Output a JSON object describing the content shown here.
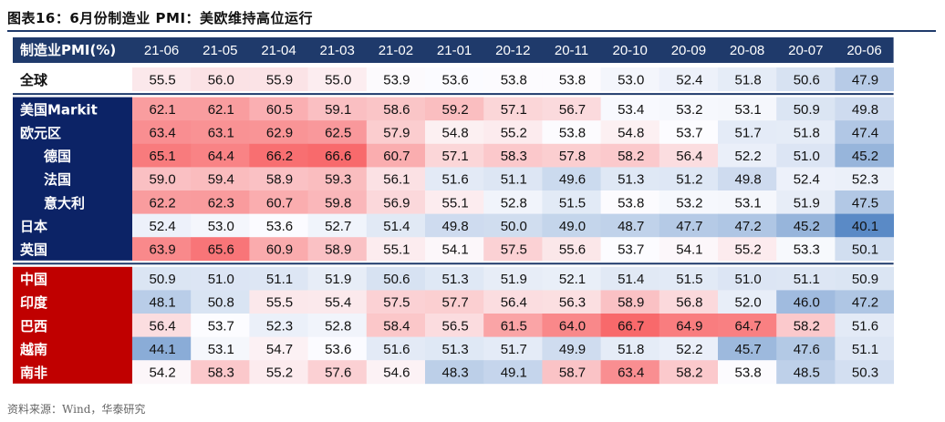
{
  "figure_title": "图表16：6月份制造业 PMI：美欧维持高位运行",
  "source_note": "资料来源：Wind，华泰研究",
  "colors": {
    "header_bg": "#1f3a6b",
    "developed_bg": "#0c2366",
    "emerging_bg": "#c00000",
    "high": "#f8696b",
    "mid": "#fcfcff",
    "low": "#5a8ac6"
  },
  "chart_data": {
    "type": "heatmap",
    "title": "6月份制造业 PMI：美欧维持高位运行",
    "corner_label": "制造业PMI(%)",
    "columns": [
      "21-06",
      "21-05",
      "21-04",
      "21-03",
      "21-02",
      "21-01",
      "20-12",
      "20-11",
      "20-10",
      "20-09",
      "20-08",
      "20-07",
      "20-06"
    ],
    "groups": [
      {
        "name": "global",
        "rows": [
          {
            "label": "全球",
            "indent": false,
            "values": [
              55.5,
              56.0,
              55.9,
              55.0,
              53.9,
              53.6,
              53.8,
              53.8,
              53.0,
              52.4,
              51.8,
              50.6,
              47.9
            ]
          }
        ]
      },
      {
        "name": "developed",
        "rows": [
          {
            "label": "美国Markit",
            "indent": false,
            "values": [
              62.1,
              62.1,
              60.5,
              59.1,
              58.6,
              59.2,
              57.1,
              56.7,
              53.4,
              53.2,
              53.1,
              50.9,
              49.8
            ]
          },
          {
            "label": "欧元区",
            "indent": false,
            "values": [
              63.4,
              63.1,
              62.9,
              62.5,
              57.9,
              54.8,
              55.2,
              53.8,
              54.8,
              53.7,
              51.7,
              51.8,
              47.4
            ]
          },
          {
            "label": "德国",
            "indent": true,
            "values": [
              65.1,
              64.4,
              66.2,
              66.6,
              60.7,
              57.1,
              58.3,
              57.8,
              58.2,
              56.4,
              52.2,
              51.0,
              45.2
            ]
          },
          {
            "label": "法国",
            "indent": true,
            "values": [
              59.0,
              59.4,
              58.9,
              59.3,
              56.1,
              51.6,
              51.1,
              49.6,
              51.3,
              51.2,
              49.8,
              52.4,
              52.3
            ]
          },
          {
            "label": "意大利",
            "indent": true,
            "values": [
              62.2,
              62.3,
              60.7,
              59.8,
              56.9,
              55.1,
              52.8,
              51.5,
              53.8,
              53.2,
              53.1,
              51.9,
              47.5
            ]
          },
          {
            "label": "日本",
            "indent": false,
            "values": [
              52.4,
              53.0,
              53.6,
              52.7,
              51.4,
              49.8,
              50.0,
              49.0,
              48.7,
              47.7,
              47.2,
              45.2,
              40.1
            ]
          },
          {
            "label": "英国",
            "indent": false,
            "values": [
              63.9,
              65.6,
              60.9,
              58.9,
              55.1,
              54.1,
              57.5,
              55.6,
              53.7,
              54.1,
              55.2,
              53.3,
              50.1
            ]
          }
        ]
      },
      {
        "name": "emerging",
        "rows": [
          {
            "label": "中国",
            "indent": false,
            "values": [
              50.9,
              51.0,
              51.1,
              51.9,
              50.6,
              51.3,
              51.9,
              52.1,
              51.4,
              51.5,
              51.0,
              51.1,
              50.9
            ]
          },
          {
            "label": "印度",
            "indent": false,
            "values": [
              48.1,
              50.8,
              55.5,
              55.4,
              57.5,
              57.7,
              56.4,
              56.3,
              58.9,
              56.8,
              52.0,
              46.0,
              47.2
            ]
          },
          {
            "label": "巴西",
            "indent": false,
            "values": [
              56.4,
              53.7,
              52.3,
              52.8,
              58.4,
              56.5,
              61.5,
              64.0,
              66.7,
              64.9,
              64.7,
              58.2,
              51.6
            ]
          },
          {
            "label": "越南",
            "indent": false,
            "values": [
              44.1,
              53.1,
              54.7,
              53.6,
              51.6,
              51.3,
              51.7,
              49.9,
              51.8,
              52.2,
              45.7,
              47.6,
              51.1
            ]
          },
          {
            "label": "南非",
            "indent": false,
            "values": [
              54.2,
              58.3,
              55.2,
              57.6,
              54.6,
              48.3,
              49.1,
              58.7,
              63.4,
              58.2,
              53.8,
              48.5,
              50.3
            ]
          }
        ]
      }
    ]
  }
}
